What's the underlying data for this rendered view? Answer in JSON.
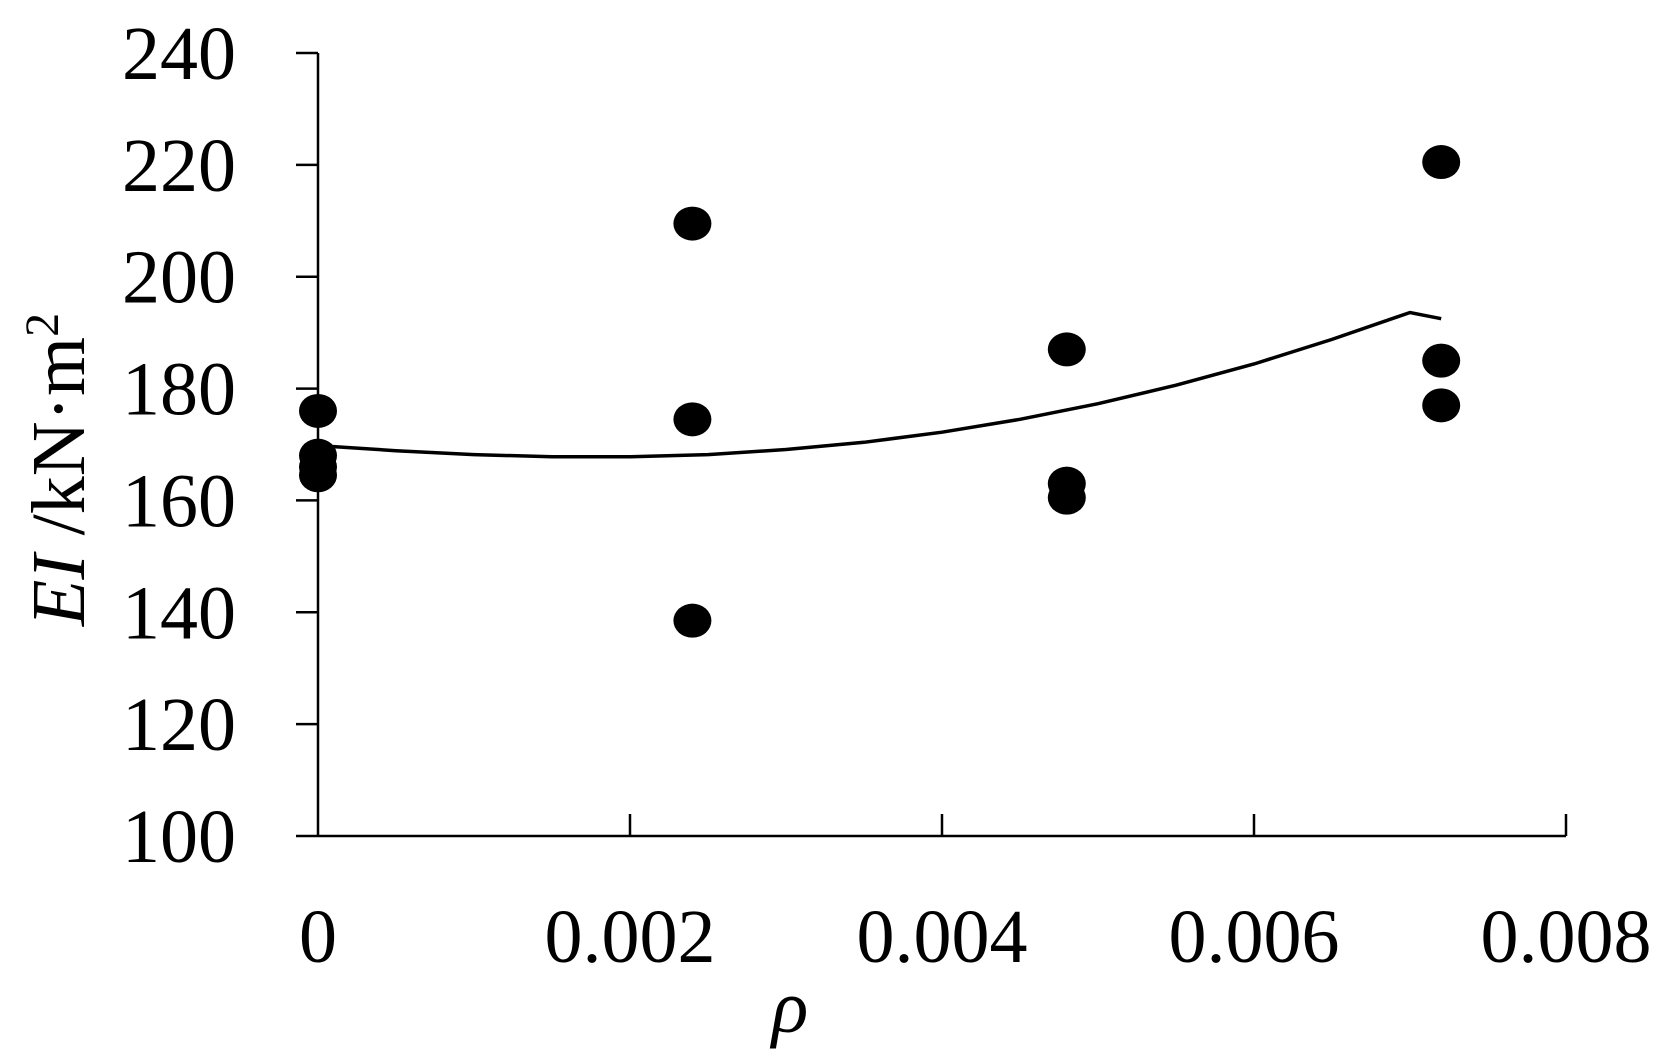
{
  "chart_data": {
    "type": "scatter",
    "title": "",
    "xlabel": "ρ",
    "ylabel": {
      "italic": "EI",
      "unit": " /kN·m",
      "sup": "2"
    },
    "xlim": [
      0,
      0.008
    ],
    "ylim": [
      100,
      240
    ],
    "xticks": [
      0,
      0.002,
      0.004,
      0.006,
      0.008
    ],
    "xtick_labels": [
      "0",
      "0.002",
      "0.004",
      "0.006",
      "0.008"
    ],
    "yticks": [
      100,
      120,
      140,
      160,
      180,
      200,
      220,
      240
    ],
    "ytick_labels": [
      "100",
      "120",
      "140",
      "160",
      "180",
      "200",
      "220",
      "240"
    ],
    "grid": false,
    "series": [
      {
        "points": [
          {
            "x": 0,
            "y": 176
          },
          {
            "x": 0,
            "y": 168
          },
          {
            "x": 0,
            "y": 166
          },
          {
            "x": 0,
            "y": 164.5
          },
          {
            "x": 0.0024,
            "y": 209.5
          },
          {
            "x": 0.0024,
            "y": 174.5
          },
          {
            "x": 0.0024,
            "y": 138.5
          },
          {
            "x": 0.0048,
            "y": 187
          },
          {
            "x": 0.0048,
            "y": 163
          },
          {
            "x": 0.0048,
            "y": 160.5
          },
          {
            "x": 0.0072,
            "y": 220.5
          },
          {
            "x": 0.0072,
            "y": 185
          },
          {
            "x": 0.0072,
            "y": 177
          }
        ]
      }
    ],
    "trendline": {
      "type": "polynomial",
      "x": [
        0,
        0.0005,
        0.001,
        0.0015,
        0.002,
        0.0025,
        0.003,
        0.0035,
        0.004,
        0.0045,
        0.005,
        0.0055,
        0.006,
        0.0065,
        0.007,
        0.0072
      ],
      "y": [
        169.8,
        168.9,
        168.2,
        167.8,
        167.8,
        168.2,
        169.1,
        170.4,
        172.2,
        174.5,
        177.3,
        180.6,
        184.4,
        188.8,
        193.6,
        192.5
      ]
    }
  }
}
